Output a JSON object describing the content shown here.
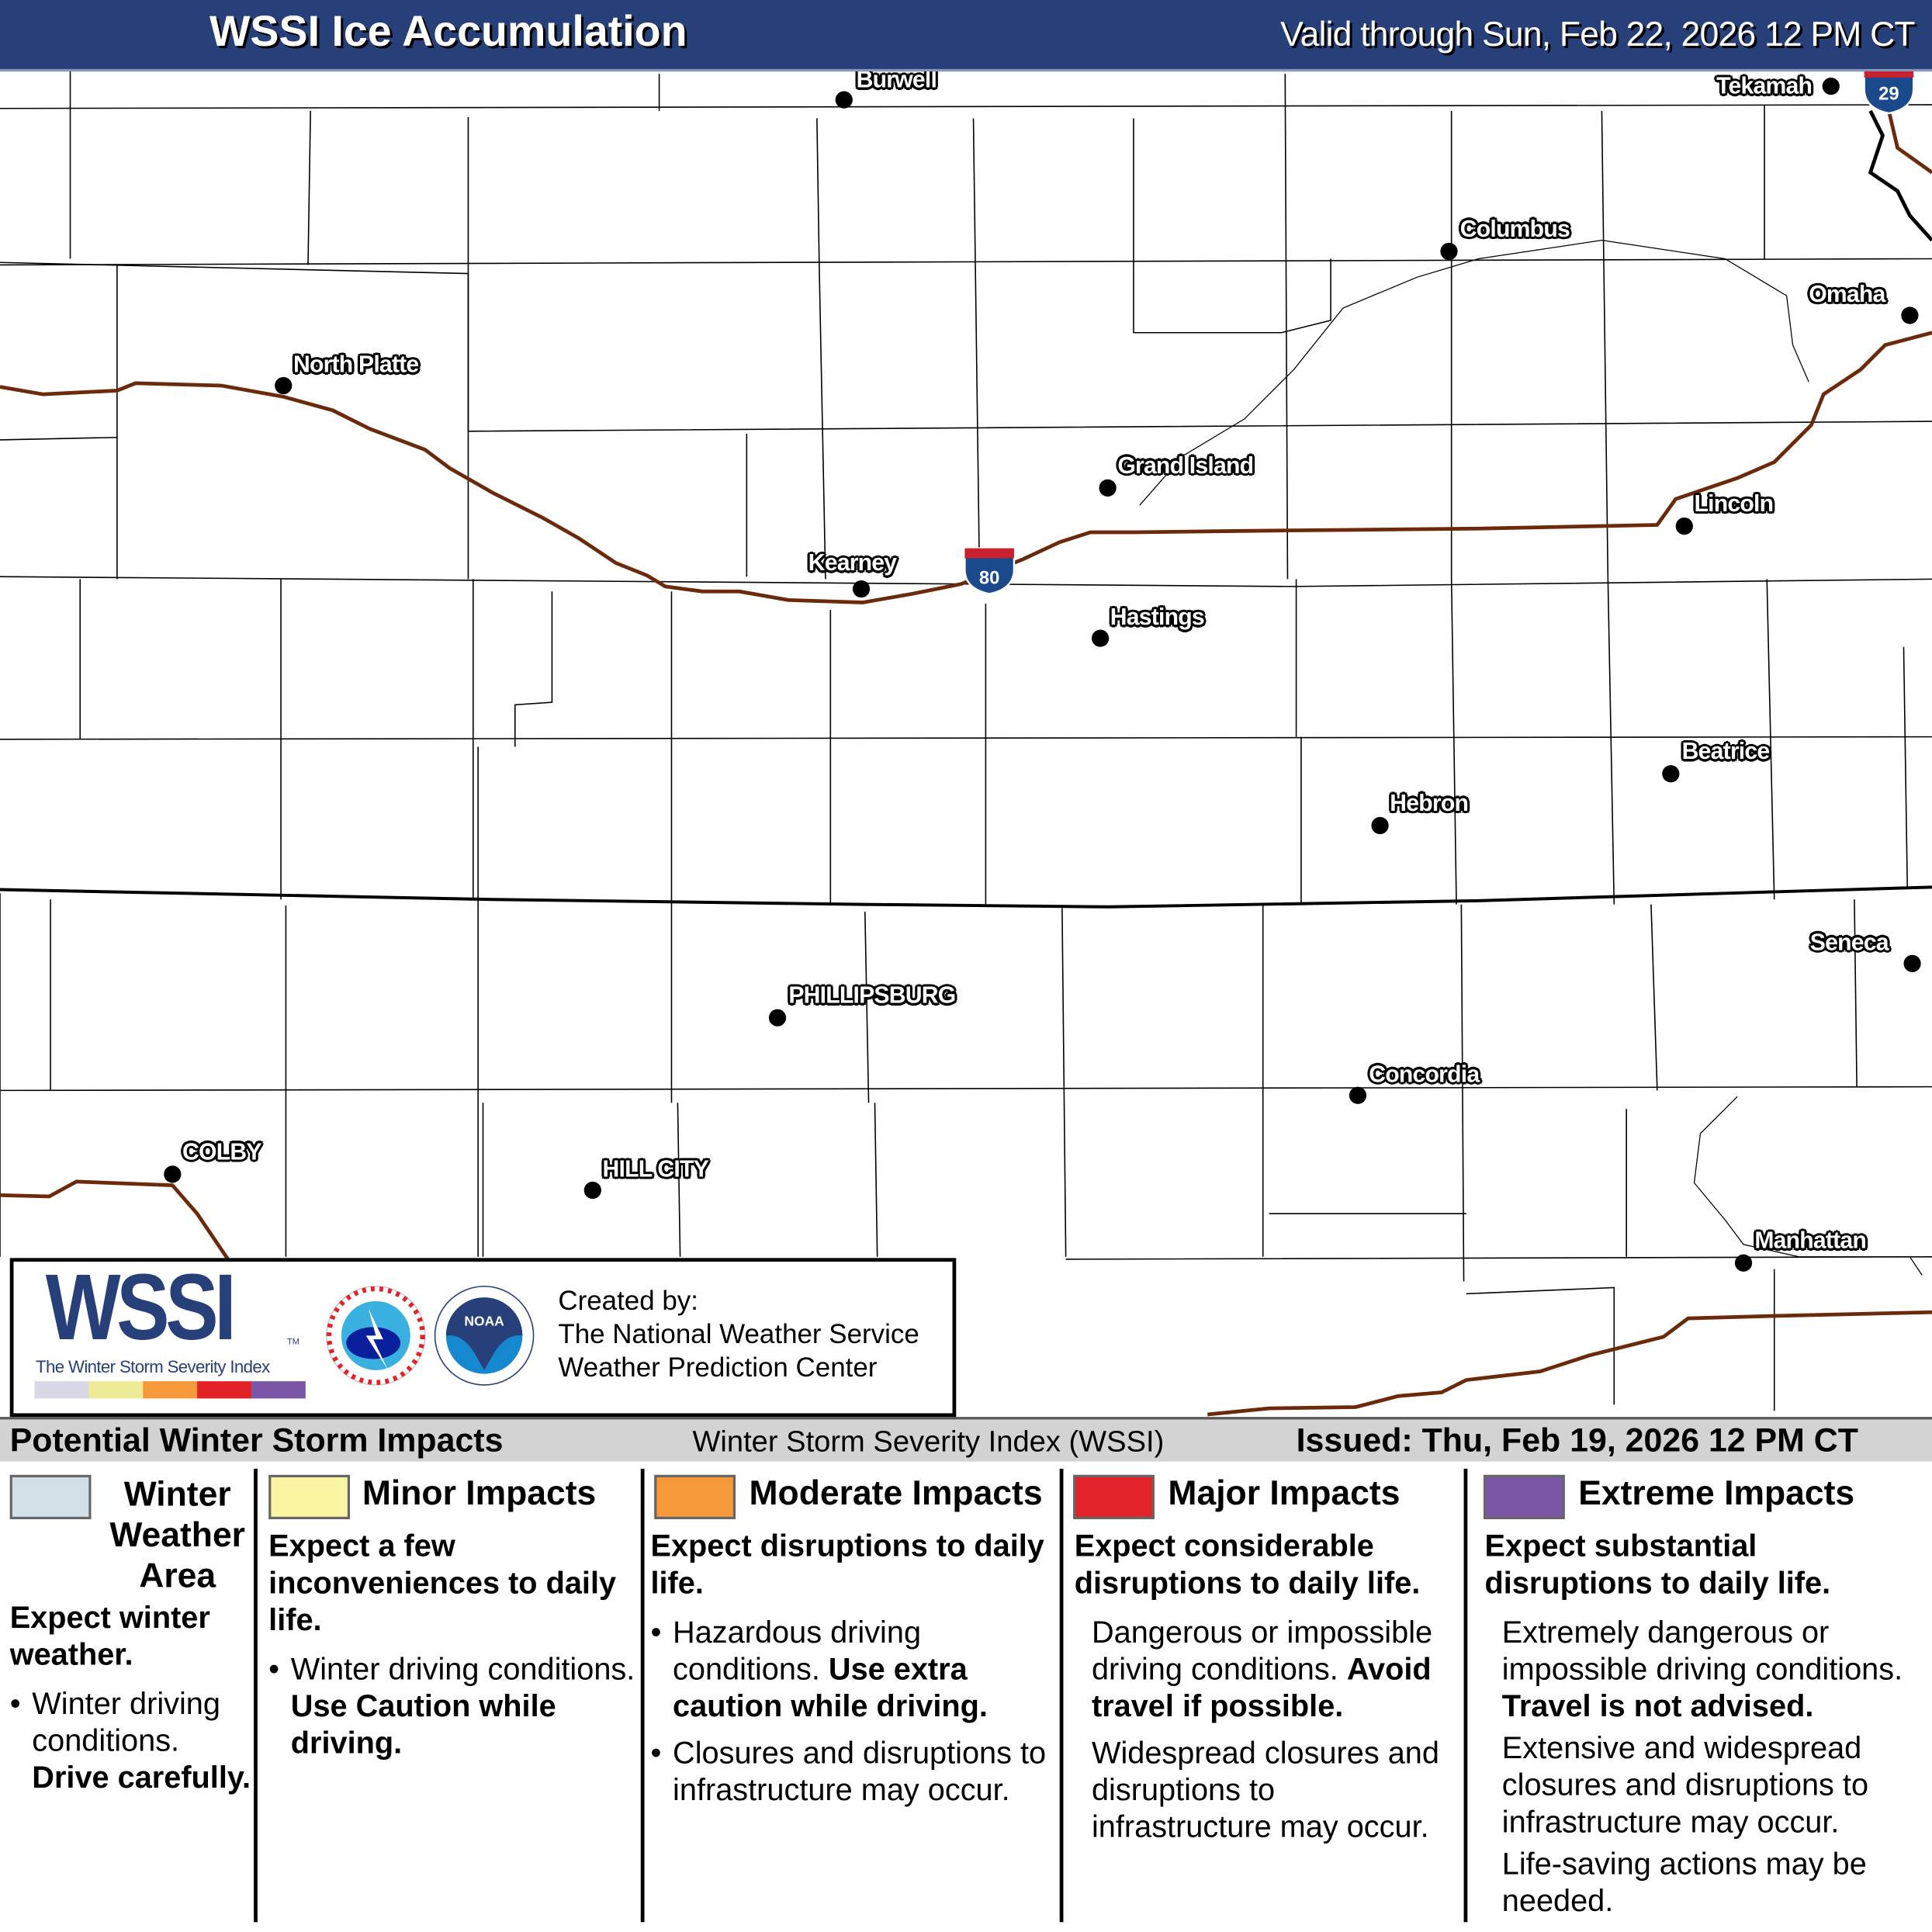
{
  "header": {
    "title": "WSSI Ice Accumulation",
    "valid": "Valid through Sun, Feb 22, 2026 12 PM CT"
  },
  "map": {
    "cities": [
      {
        "name": "Burwell"
      },
      {
        "name": "Tekamah"
      },
      {
        "name": "Columbus"
      },
      {
        "name": "Omaha"
      },
      {
        "name": "North Platte"
      },
      {
        "name": "Grand Island"
      },
      {
        "name": "Lincoln"
      },
      {
        "name": "Kearney"
      },
      {
        "name": "Hastings"
      },
      {
        "name": "Beatrice"
      },
      {
        "name": "Hebron"
      },
      {
        "name": "Seneca"
      },
      {
        "name": "PHILLIPSBURG"
      },
      {
        "name": "Concordia"
      },
      {
        "name": "COLBY"
      },
      {
        "name": "HILL CITY"
      },
      {
        "name": "Manhattan"
      }
    ],
    "interstates": [
      {
        "number": "80"
      },
      {
        "number": "29"
      }
    ],
    "colors": {
      "interstate": "#6b2a0c",
      "state_border": "#000000",
      "county": "#000000"
    }
  },
  "logo": {
    "wssi": "WSSI",
    "tm": "TM",
    "subtitle": "The Winter Storm Severity Index",
    "scale_colors": [
      "#d8d8e6",
      "#eeeb98",
      "#f6993a",
      "#e32228",
      "#7b56a6"
    ],
    "nws": "NATIONAL WEATHER SERVICE",
    "noaa": "NOAA",
    "created": [
      "Created by:",
      "The National Weather Service",
      "Weather Prediction Center"
    ]
  },
  "legend": {
    "title": "Potential Winter Storm Impacts",
    "index_name": "Winter Storm Severity Index (WSSI)",
    "issued": "Issued: Thu, Feb 19, 2026 12 PM CT",
    "categories": [
      {
        "label": "Winter Weather Area",
        "color": "#d3dfe6",
        "summary": "Expect winter weather.",
        "details": [
          "Winter driving conditions.",
          "Drive carefully."
        ]
      },
      {
        "label": "Minor Impacts",
        "color": "#f9f5a3",
        "summary": "Expect a few inconveniences to daily life.",
        "details": [
          "Winter driving conditions.",
          "Use Caution while driving."
        ]
      },
      {
        "label": "Moderate Impacts",
        "color": "#f6993a",
        "summary": "Expect disruptions to daily life.",
        "details": [
          "Hazardous driving conditions.",
          "Use extra caution while driving.",
          "Closures and disruptions to infrastructure may occur."
        ]
      },
      {
        "label": "Major Impacts",
        "color": "#e3232a",
        "summary": "Expect considerable disruptions to daily life.",
        "details": [
          "Dangerous or impossible driving conditions.",
          "Avoid travel if possible.",
          "Widespread closures and disruptions to infrastructure may occur."
        ]
      },
      {
        "label": "Extreme Impacts",
        "color": "#7b56a6",
        "summary": "Expect substantial disruptions to daily life.",
        "details": [
          "Extremely dangerous or impossible driving conditions.",
          "Travel is not advised.",
          "Extensive and widespread closures and disruptions to infrastructure may occur.",
          "Life-saving actions may be needed."
        ]
      }
    ]
  }
}
